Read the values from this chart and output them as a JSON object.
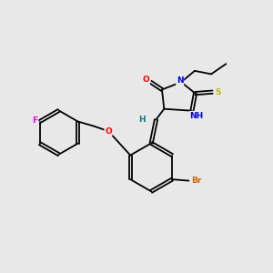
{
  "bg_color": "#e8e8e8",
  "bond_color": "#000000",
  "atom_colors": {
    "F": "#ee00ee",
    "O": "#ff0000",
    "N": "#0000ee",
    "S": "#bbbb00",
    "Br": "#cc6600",
    "H": "#008080",
    "C": "#000000"
  },
  "figsize": [
    3.0,
    3.0
  ],
  "dpi": 100
}
